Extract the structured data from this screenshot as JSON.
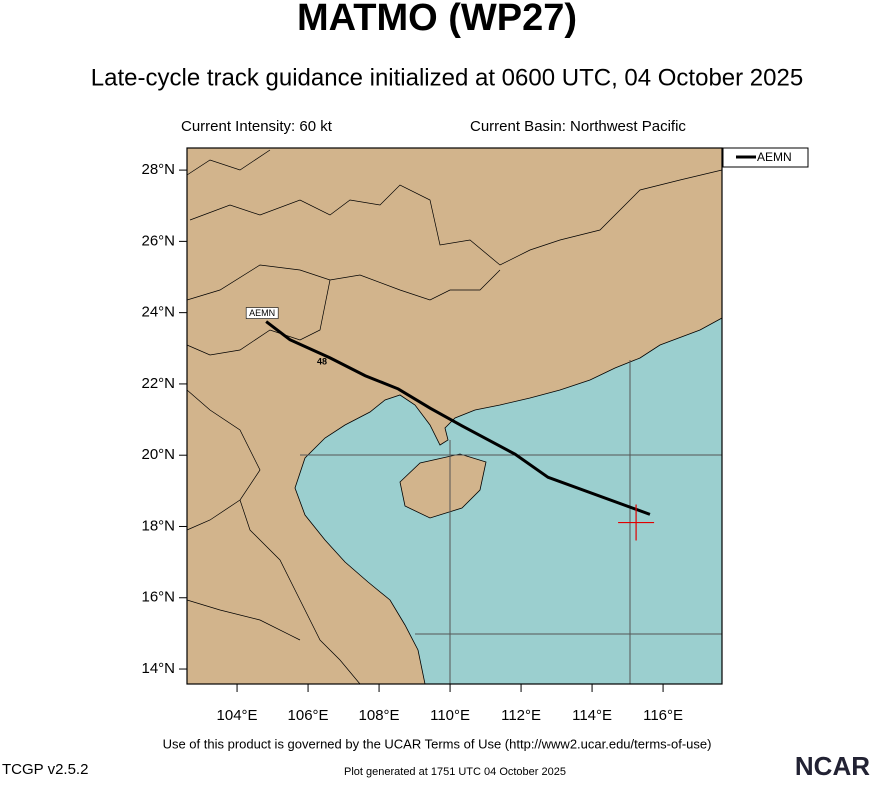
{
  "chart_data": {
    "type": "track",
    "title": "MATMO (WP27)",
    "subtitle": "Late-cycle track guidance initialized at 0600 UTC, 04 October 2025",
    "intensity_label": "Current Intensity: 60 kt",
    "basin_label": "Current Basin: Northwest Pacific",
    "xlim": [
      102.59,
      117.66
    ],
    "ylim": [
      13.58,
      28.62
    ],
    "xticks": [
      {
        "value": 104,
        "label": "104°E"
      },
      {
        "value": 106,
        "label": "106°E"
      },
      {
        "value": 108,
        "label": "108°E"
      },
      {
        "value": 110,
        "label": "110°E"
      },
      {
        "value": 112,
        "label": "112°E"
      },
      {
        "value": 114,
        "label": "114°E"
      },
      {
        "value": 116,
        "label": "116°E"
      }
    ],
    "yticks": [
      {
        "value": 14,
        "label": "14°N"
      },
      {
        "value": 16,
        "label": "16°N"
      },
      {
        "value": 18,
        "label": "18°N"
      },
      {
        "value": 20,
        "label": "20°N"
      },
      {
        "value": 22,
        "label": "22°N"
      },
      {
        "value": 24,
        "label": "24°N"
      },
      {
        "value": 26,
        "label": "26°N"
      },
      {
        "value": 28,
        "label": "28°N"
      }
    ],
    "series": [
      {
        "name": "AEMN",
        "color": "#000000",
        "x": [
          115.63,
          112.76,
          111.83,
          110.34,
          109.44,
          108.54,
          107.61,
          106.62,
          105.49,
          104.82
        ],
        "values": [
          18.34,
          19.38,
          20.03,
          20.82,
          21.32,
          21.86,
          22.23,
          22.73,
          23.24,
          23.75
        ]
      }
    ],
    "hour_label": {
      "x": 106.62,
      "y": 22.73,
      "text": "48"
    },
    "current_position": {
      "x": 115.24,
      "y": 18.11
    },
    "footer_terms": "Use of this product is governed by the UCAR Terms of Use (http://www2.ucar.edu/terms-of-use)",
    "footer_generated": "Plot generated at 1751 UTC   04 October 2025",
    "version": "TCGP v2.5.2",
    "logo": "NCAR"
  }
}
